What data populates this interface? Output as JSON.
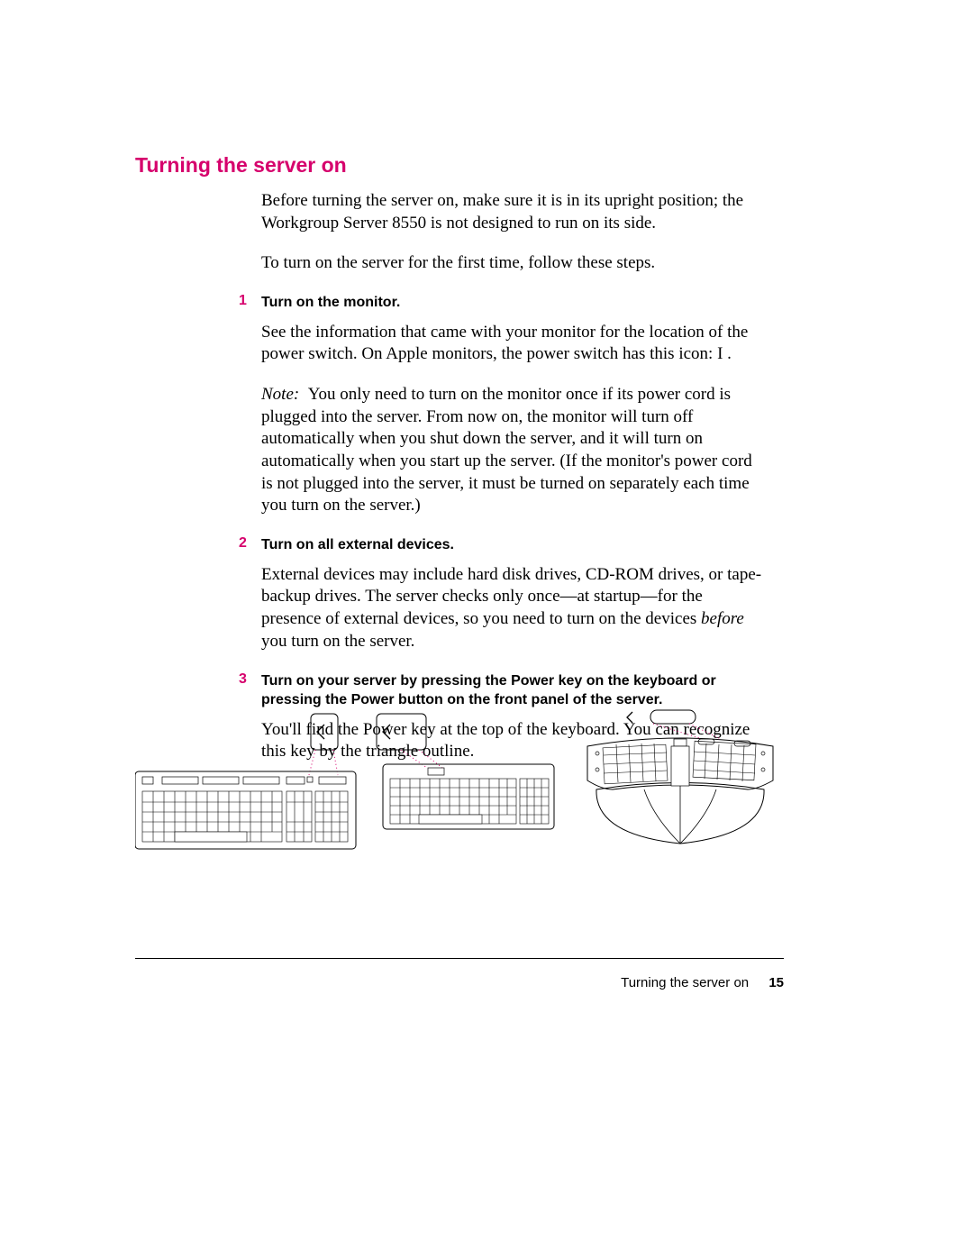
{
  "heading": "Turning the server on",
  "intro1": "Before turning the server on, make sure it is in its upright position; the Workgroup Server 8550 is not designed to run on its side.",
  "intro2": "To turn on the server for the first time, follow these steps.",
  "steps": [
    {
      "num": "1",
      "title": "Turn on the monitor.",
      "paras": [
        "See the information that came with your monitor for the location of the power switch. On Apple monitors, the power switch has this icon: I .",
        "<span class='italic'>Note:</span> &nbsp;You only need to turn on the monitor once if its power cord is plugged into the server. From now on, the monitor will turn off automatically when you shut down the server, and it will turn on automatically when you start up the server. (If the monitor's power cord is not plugged into the server, it must be turned on separately each time you turn on the server.)"
      ]
    },
    {
      "num": "2",
      "title": "Turn on all external devices.",
      "paras": [
        "External devices may include hard disk drives, CD-ROM drives, or tape-backup drives. The server checks only once—at startup—for the presence of external devices, so you need to turn on the devices <span class='italic'>before</span> you turn on the server."
      ]
    },
    {
      "num": "3",
      "title": "Turn on your server by pressing the Power key on the keyboard or pressing the Power button on the front panel of the server.",
      "paras": [
        "You'll find the Power key at the top of the keyboard. You can recognize this key by the triangle outline."
      ]
    }
  ],
  "footer": {
    "text": "Turning the server on",
    "page": "15"
  },
  "colors": {
    "accent": "#d6006c",
    "text": "#000000",
    "line": "#000000"
  }
}
